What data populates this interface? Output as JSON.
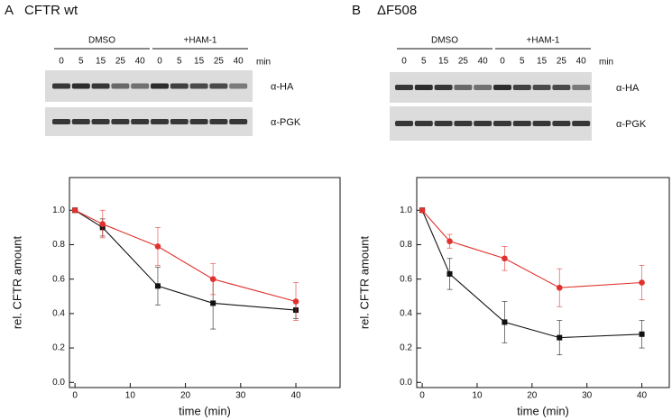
{
  "chart_data": [
    {
      "type": "line",
      "panel": "A",
      "title": "CFTR wt",
      "blot": {
        "groups": [
          "DMSO",
          "+HAM-1"
        ],
        "lanes": [
          "0",
          "5",
          "15",
          "25",
          "40",
          "0",
          "5",
          "15",
          "25",
          "40"
        ],
        "unit": "min",
        "rows": [
          "α-HA",
          "α-PGK"
        ]
      },
      "x_label": "time (min)",
      "y_label": "rel. CFTR amount",
      "x": [
        0,
        5,
        15,
        25,
        40
      ],
      "series": [
        {
          "color": "#111111",
          "marker": "square",
          "values": [
            1.0,
            0.9,
            0.56,
            0.46,
            0.42
          ],
          "errors": [
            0,
            0.05,
            0.11,
            0.15,
            0.05
          ]
        },
        {
          "color": "#e0322c",
          "marker": "circle",
          "values": [
            1.0,
            0.92,
            0.79,
            0.6,
            0.47
          ],
          "errors": [
            0,
            0.08,
            0.11,
            0.09,
            0.11
          ]
        }
      ],
      "xlim": [
        -1,
        48
      ],
      "xticks": [
        0,
        10,
        20,
        30,
        40
      ],
      "ylim": [
        -0.03,
        1.19
      ],
      "yticks": [
        {
          "value": 0,
          "label": "0.0"
        },
        {
          "value": 0.2,
          "label": "0.2"
        },
        {
          "value": 0.4,
          "label": "0.4"
        },
        {
          "value": 0.6,
          "label": "0.6"
        },
        {
          "value": 0.8,
          "label": "0.8"
        },
        {
          "value": 1.0,
          "label": "1.0"
        }
      ]
    },
    {
      "type": "line",
      "panel": "B",
      "title": "ΔF508",
      "blot": {
        "groups": [
          "DMSO",
          "+HAM-1"
        ],
        "lanes": [
          "0",
          "5",
          "15",
          "25",
          "40",
          "0",
          "5",
          "15",
          "25",
          "40"
        ],
        "unit": "min",
        "rows": [
          "α-HA",
          "α-PGK"
        ]
      },
      "x_label": "time (min)",
      "y_label": "rel. CFTR amount",
      "x": [
        0,
        5,
        15,
        25,
        40
      ],
      "series": [
        {
          "color": "#111111",
          "marker": "square",
          "values": [
            1.0,
            0.63,
            0.35,
            0.26,
            0.28
          ],
          "errors": [
            0,
            0.09,
            0.12,
            0.1,
            0.08
          ]
        },
        {
          "color": "#e0322c",
          "marker": "circle",
          "values": [
            1.0,
            0.82,
            0.72,
            0.55,
            0.58
          ],
          "errors": [
            0,
            0.04,
            0.07,
            0.11,
            0.1
          ]
        }
      ],
      "xlim": [
        -1,
        45
      ],
      "xticks": [
        0,
        10,
        20,
        30,
        40
      ],
      "ylim": [
        -0.03,
        1.19
      ],
      "yticks": [
        {
          "value": 0,
          "label": "0.0"
        },
        {
          "value": 0.2,
          "label": "0.2"
        },
        {
          "value": 0.4,
          "label": "0.4"
        },
        {
          "value": 0.6,
          "label": "0.6"
        },
        {
          "value": 0.8,
          "label": "0.8"
        },
        {
          "value": 1.0,
          "label": "1.0"
        }
      ]
    }
  ]
}
